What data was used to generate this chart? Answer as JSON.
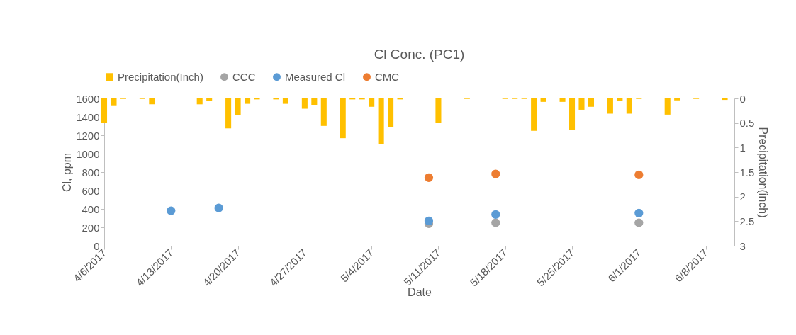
{
  "chart_data": {
    "type": "scatter",
    "title": "Cl Conc. (PC1)",
    "xlabel": "Date",
    "ylabel": "Cl, ppm",
    "y2label": "Precipitation(inch)",
    "xlim": [
      "2017-04-06",
      "2017-06-11"
    ],
    "xticks": [
      {
        "value": "2017-04-06",
        "label": "4/6/2017"
      },
      {
        "value": "2017-04-13",
        "label": "4/13/2017"
      },
      {
        "value": "2017-04-20",
        "label": "4/20/2017"
      },
      {
        "value": "2017-04-27",
        "label": "4/27/2017"
      },
      {
        "value": "2017-05-04",
        "label": "5/4/2017"
      },
      {
        "value": "2017-05-11",
        "label": "5/11/2017"
      },
      {
        "value": "2017-05-18",
        "label": "5/18/2017"
      },
      {
        "value": "2017-05-25",
        "label": "5/25/2017"
      },
      {
        "value": "2017-06-01",
        "label": "6/1/2017"
      },
      {
        "value": "2017-06-08",
        "label": "6/8/2017"
      }
    ],
    "ylim": [
      0,
      1600
    ],
    "yticks": [
      0,
      200,
      400,
      600,
      800,
      1000,
      1200,
      1400,
      1600
    ],
    "y2lim": [
      3,
      0
    ],
    "y2ticks": [
      0,
      0.5,
      1,
      1.5,
      2,
      2.5,
      3
    ],
    "legend": "top",
    "grid": false,
    "marker": "circle",
    "series": [
      {
        "name": "Precipitation(Inch)",
        "type": "bar",
        "axis": "y2",
        "color": "#ffc000",
        "x": [
          "2017-04-06",
          "2017-04-07",
          "2017-04-08",
          "2017-04-10",
          "2017-04-11",
          "2017-04-16",
          "2017-04-17",
          "2017-04-19",
          "2017-04-20",
          "2017-04-21",
          "2017-04-22",
          "2017-04-24",
          "2017-04-25",
          "2017-04-27",
          "2017-04-28",
          "2017-04-29",
          "2017-05-01",
          "2017-05-02",
          "2017-05-03",
          "2017-05-04",
          "2017-05-05",
          "2017-05-06",
          "2017-05-07",
          "2017-05-11",
          "2017-05-14",
          "2017-05-18",
          "2017-05-19",
          "2017-05-20",
          "2017-05-21",
          "2017-05-22",
          "2017-05-24",
          "2017-05-25",
          "2017-05-26",
          "2017-05-27",
          "2017-05-29",
          "2017-05-30",
          "2017-05-31",
          "2017-06-01",
          "2017-06-04",
          "2017-06-05",
          "2017-06-07",
          "2017-06-10"
        ],
        "values": [
          0.49,
          0.14,
          0.01,
          0.01,
          0.12,
          0.12,
          0.05,
          0.61,
          0.34,
          0.11,
          0.02,
          0.02,
          0.11,
          0.21,
          0.13,
          0.56,
          0.81,
          0.02,
          0.02,
          0.17,
          0.93,
          0.59,
          0.02,
          0.49,
          0.01,
          0.01,
          0.01,
          0.01,
          0.66,
          0.07,
          0.07,
          0.64,
          0.23,
          0.17,
          0.31,
          0.05,
          0.31,
          0.01,
          0.33,
          0.04,
          0.01,
          0.03
        ]
      },
      {
        "name": "CCC",
        "color": "#a5a5a5",
        "x": [
          "2017-05-10",
          "2017-05-17",
          "2017-06-01"
        ],
        "values": [
          240,
          250,
          250
        ]
      },
      {
        "name": "Measured Cl",
        "color": "#5b9bd5",
        "x": [
          "2017-04-13",
          "2017-04-18",
          "2017-05-10",
          "2017-05-17",
          "2017-06-01"
        ],
        "values": [
          380,
          410,
          270,
          340,
          355
        ]
      },
      {
        "name": "CMC",
        "color": "#ed7d31",
        "x": [
          "2017-05-10",
          "2017-05-17",
          "2017-06-01"
        ],
        "values": [
          740,
          780,
          770
        ]
      }
    ]
  }
}
